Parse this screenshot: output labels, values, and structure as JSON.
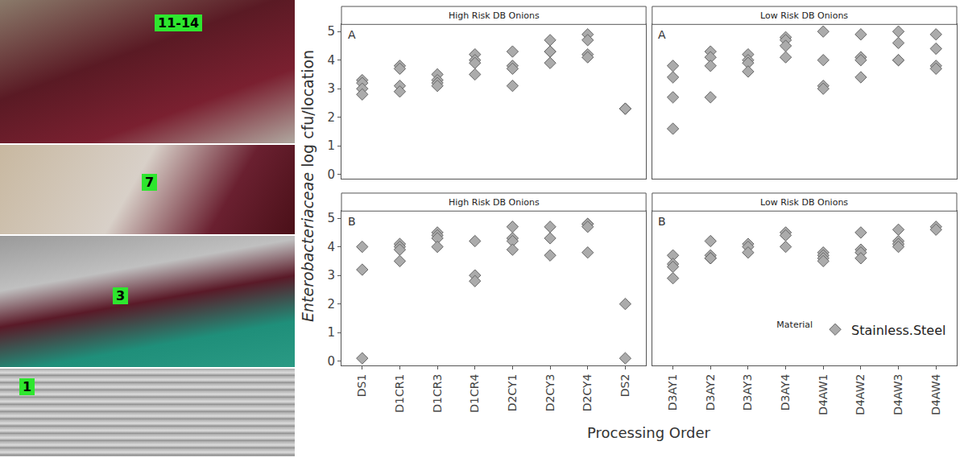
{
  "photos": {
    "labels": [
      "11-14",
      "7",
      "3",
      "1"
    ]
  },
  "chart_data": {
    "type": "scatter",
    "x_label": "Processing Order",
    "y_label": "Enterobacteriaceae log cfu/location",
    "ylim": [
      -0.15,
      5.25
    ],
    "yticks": [
      0,
      1,
      2,
      3,
      4,
      5
    ],
    "grid": false,
    "legend": "bottom right",
    "legend_title": "Material",
    "series": [
      {
        "name": "Stainless.Steel",
        "color": "#ababab",
        "marker": "diamond"
      }
    ],
    "panels": [
      {
        "title": "High Risk DB Onions",
        "annotations": [
          "A"
        ],
        "categories": [
          "DS1",
          "D1CR1",
          "D1CR3",
          "D1CR4",
          "D2CY1",
          "D2CY3",
          "D2CY4",
          "DS2"
        ],
        "values": [
          [
            3.3,
            3.2,
            3.0,
            2.8
          ],
          [
            3.8,
            3.7,
            3.1,
            2.9
          ],
          [
            3.5,
            3.3,
            3.2,
            3.1
          ],
          [
            4.2,
            4.0,
            3.9,
            3.5
          ],
          [
            4.3,
            3.8,
            3.7,
            3.1
          ],
          [
            4.7,
            4.3,
            4.3,
            3.9
          ],
          [
            4.9,
            4.7,
            4.2,
            4.1
          ],
          [
            2.3,
            2.3
          ]
        ]
      },
      {
        "title": "Low Risk DB Onions",
        "annotations": [
          "A"
        ],
        "categories": [
          "D3AY1",
          "D3AY2",
          "D3AY3",
          "D3AY4",
          "D4AW1",
          "D4AW2",
          "D4AW3",
          "D4AW4"
        ],
        "values": [
          [
            3.8,
            3.4,
            2.7,
            1.6
          ],
          [
            4.3,
            4.1,
            3.8,
            2.7
          ],
          [
            4.2,
            4.0,
            3.9,
            3.6
          ],
          [
            4.8,
            4.7,
            4.5,
            4.1
          ],
          [
            5.0,
            4.0,
            3.1,
            3.0
          ],
          [
            4.9,
            4.1,
            4.0,
            3.4
          ],
          [
            5.0,
            4.6,
            4.0,
            4.0
          ],
          [
            4.9,
            4.4,
            3.8,
            3.7
          ]
        ]
      },
      {
        "title": "High Risk DB Onions",
        "annotations": [
          "B"
        ],
        "categories": [
          "DS1",
          "D1CR1",
          "D1CR3",
          "D1CR4",
          "D2CY1",
          "D2CY3",
          "D2CY4",
          "DS2"
        ],
        "values": [
          [
            4.0,
            3.2,
            0.1
          ],
          [
            4.1,
            4.0,
            3.9,
            3.5
          ],
          [
            4.5,
            4.4,
            4.3,
            4.0
          ],
          [
            4.2,
            3.0,
            2.8
          ],
          [
            4.7,
            4.3,
            4.2,
            3.9
          ],
          [
            4.7,
            4.3,
            3.7
          ],
          [
            4.8,
            4.8,
            4.7,
            3.8
          ],
          [
            2.0,
            0.1
          ]
        ]
      },
      {
        "title": "Low Risk DB Onions",
        "annotations": [
          "B"
        ],
        "categories": [
          "D3AY1",
          "D3AY2",
          "D3AY3",
          "D3AY4",
          "D4AW1",
          "D4AW2",
          "D4AW3",
          "D4AW4"
        ],
        "values": [
          [
            3.7,
            3.4,
            3.3,
            2.9
          ],
          [
            4.2,
            3.7,
            3.6,
            3.6
          ],
          [
            4.1,
            4.0,
            3.8
          ],
          [
            4.5,
            4.4,
            4.0
          ],
          [
            3.8,
            3.7,
            3.6,
            3.5
          ],
          [
            4.5,
            3.9,
            3.8,
            3.6
          ],
          [
            4.6,
            4.2,
            4.1,
            4.0
          ],
          [
            4.7,
            4.6
          ]
        ]
      }
    ]
  }
}
